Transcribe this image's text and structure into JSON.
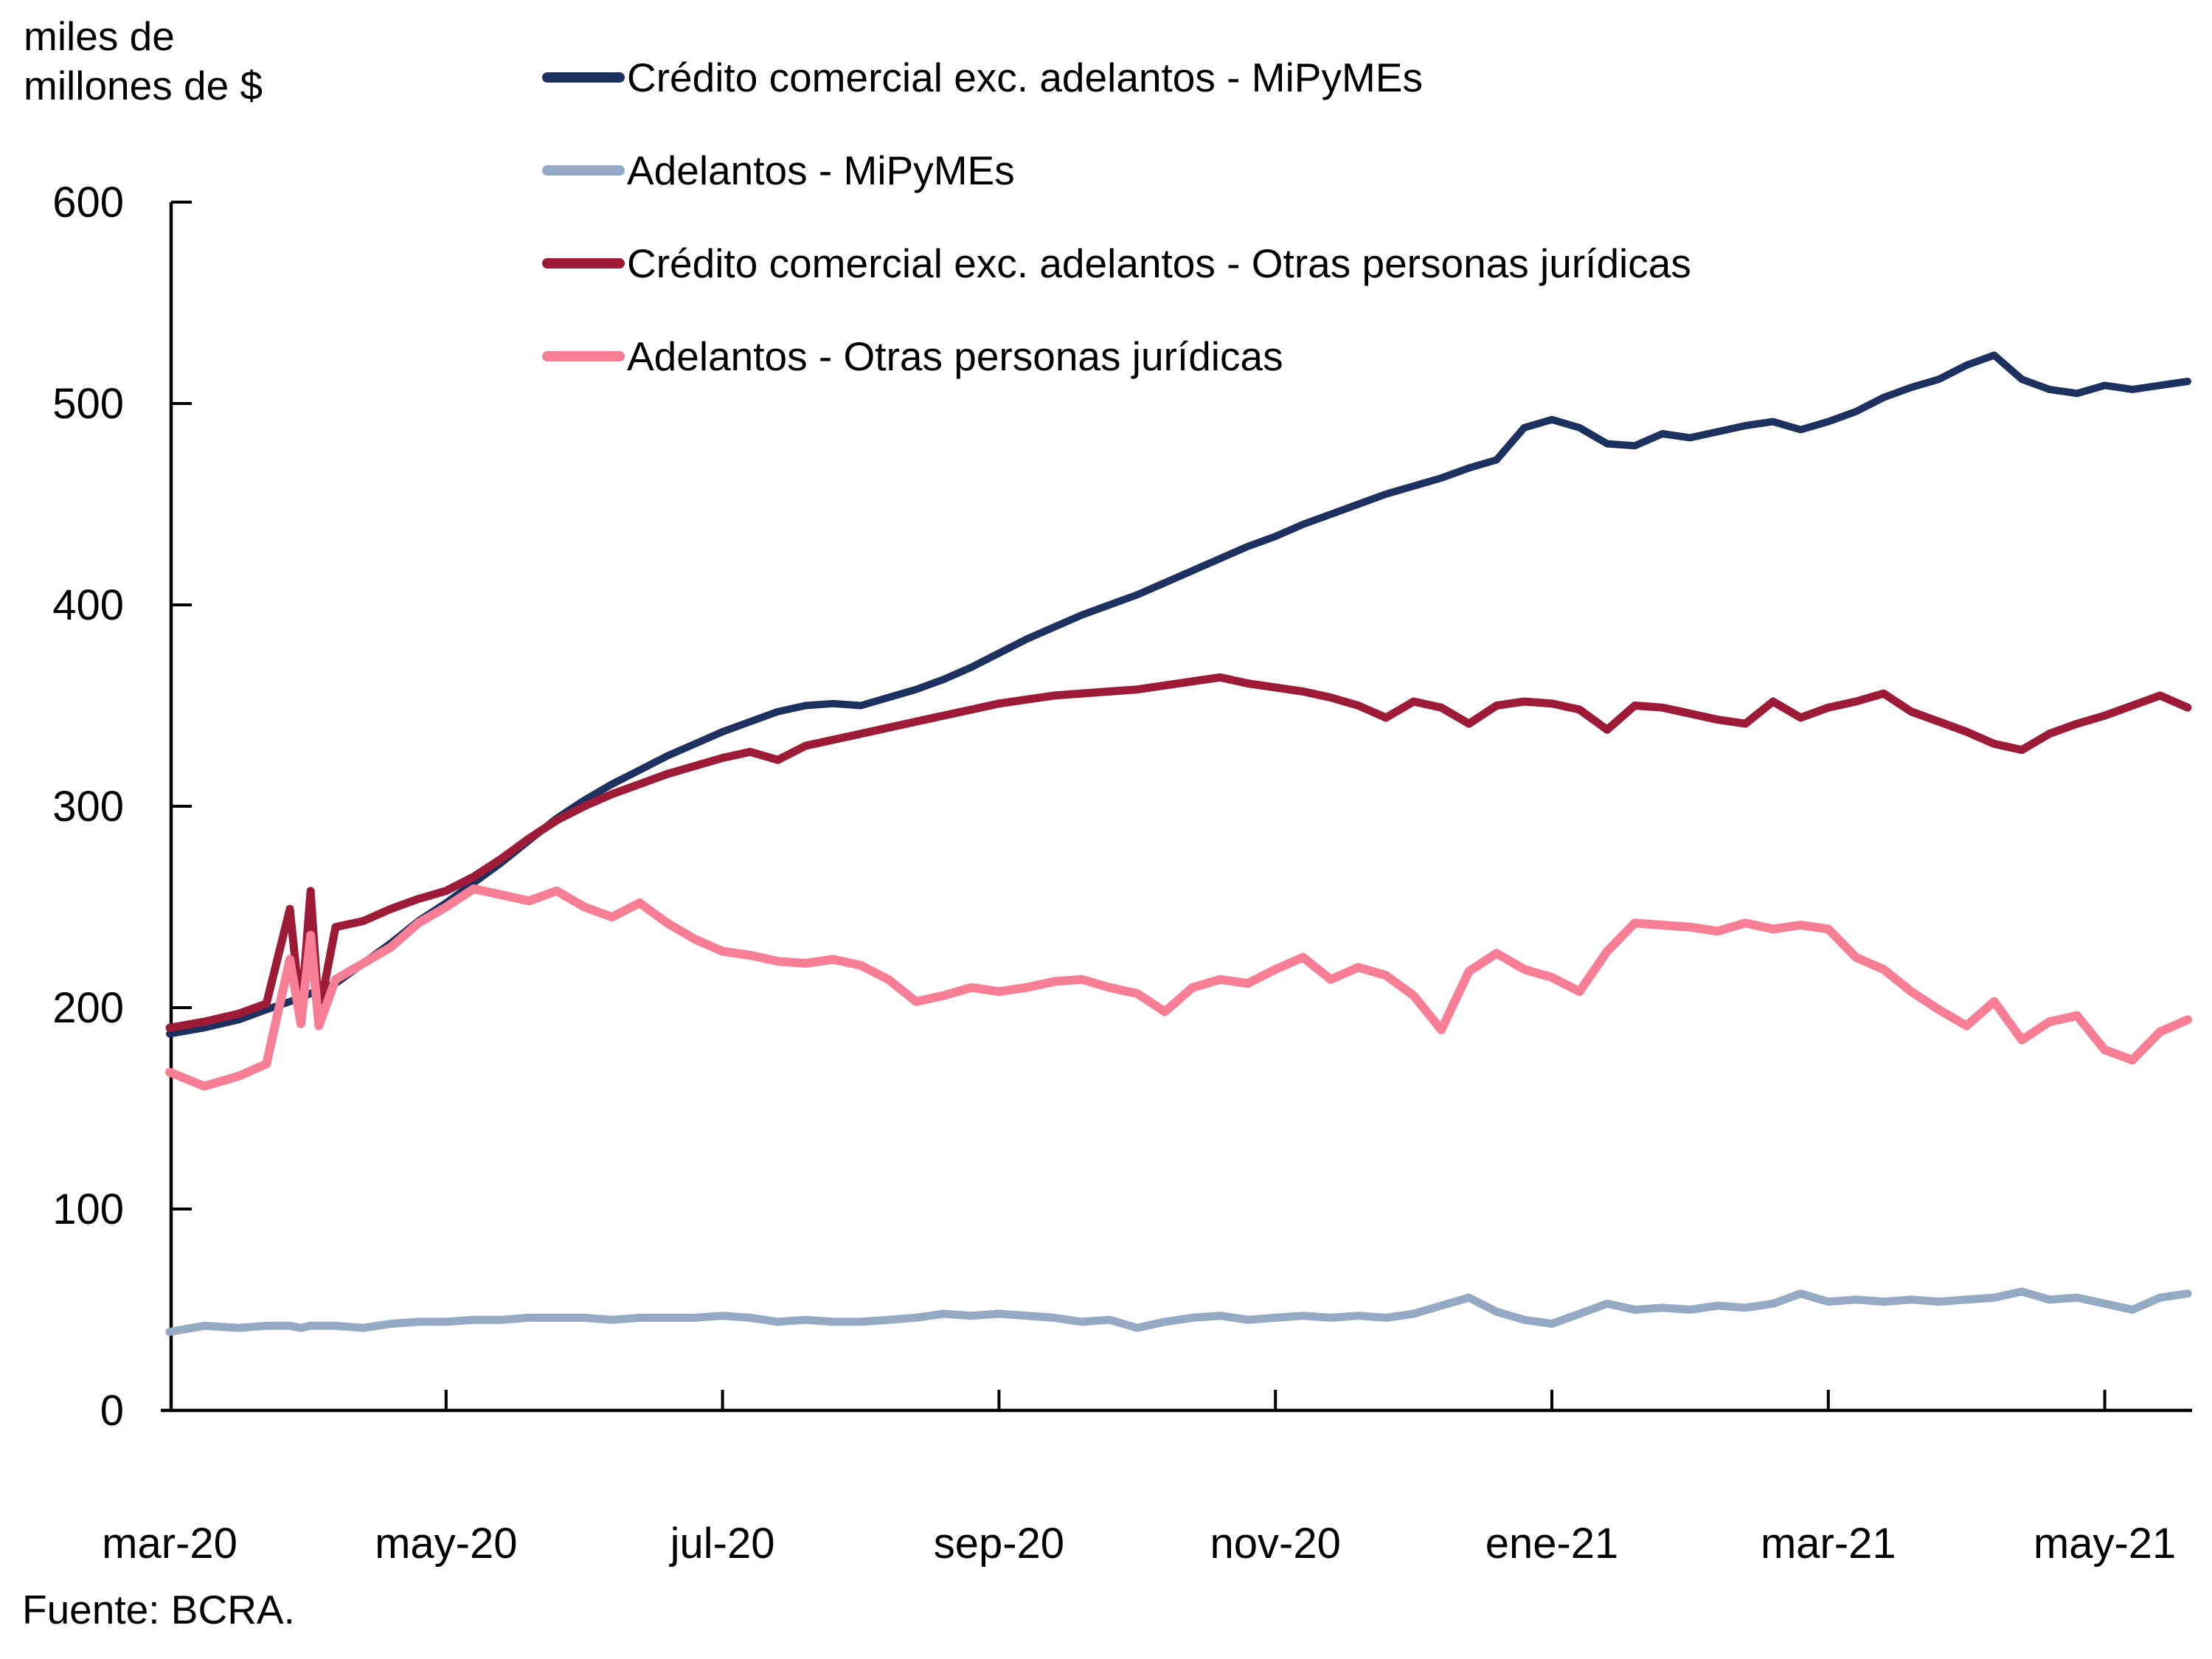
{
  "figure": {
    "ylabel_line1": "miles de",
    "ylabel_line2": "millones de $",
    "source": "Fuente: BCRA."
  },
  "chart_data": {
    "type": "line",
    "title": "",
    "xlabel": "",
    "ylabel": "miles de millones de $",
    "ylim": [
      0,
      600
    ],
    "yticks": [
      0,
      100,
      200,
      300,
      400,
      500,
      600
    ],
    "xtick_labels": [
      "mar-20",
      "may-20",
      "jul-20",
      "sep-20",
      "nov-20",
      "ene-21",
      "mar-21",
      "may-21"
    ],
    "xtick_months": [
      0,
      2,
      4,
      6,
      8,
      10,
      12,
      14
    ],
    "grid": false,
    "legend_position": "top-left",
    "x_months": [
      0,
      0.25,
      0.5,
      0.7,
      0.87,
      0.95,
      1.02,
      1.08,
      1.2,
      1.4,
      1.6,
      1.8,
      2.0,
      2.2,
      2.4,
      2.6,
      2.8,
      3.0,
      3.2,
      3.4,
      3.6,
      3.8,
      4.0,
      4.2,
      4.4,
      4.6,
      4.8,
      5.0,
      5.2,
      5.4,
      5.6,
      5.8,
      6.0,
      6.2,
      6.4,
      6.6,
      6.8,
      7.0,
      7.2,
      7.4,
      7.6,
      7.8,
      8.0,
      8.2,
      8.4,
      8.6,
      8.8,
      9.0,
      9.2,
      9.4,
      9.6,
      9.8,
      10.0,
      10.2,
      10.4,
      10.6,
      10.8,
      11.0,
      11.2,
      11.4,
      11.6,
      11.8,
      12.0,
      12.2,
      12.4,
      12.6,
      12.8,
      13.0,
      13.2,
      13.4,
      13.6,
      13.8,
      14.0,
      14.2,
      14.4,
      14.6
    ],
    "series": [
      {
        "name": "Crédito comercial exc. adelantos - MiPyMEs",
        "color": "#1d3160",
        "stroke_width": 10,
        "values": [
          187,
          190,
          194,
          199,
          203,
          205,
          207,
          209,
          212,
          222,
          232,
          243,
          252,
          262,
          272,
          283,
          294,
          303,
          311,
          318,
          325,
          331,
          337,
          342,
          347,
          350,
          351,
          350,
          354,
          358,
          363,
          369,
          376,
          383,
          389,
          395,
          400,
          405,
          411,
          417,
          423,
          429,
          434,
          440,
          445,
          450,
          455,
          459,
          463,
          468,
          472,
          488,
          492,
          488,
          480,
          479,
          485,
          483,
          486,
          489,
          491,
          487,
          491,
          496,
          503,
          508,
          512,
          519,
          524,
          512,
          507,
          505,
          509,
          507,
          509,
          511
        ]
      },
      {
        "name": "Adelantos - MiPyMEs",
        "color": "#94a9c4",
        "stroke_width": 11,
        "values": [
          39,
          42,
          41,
          42,
          42,
          41,
          42,
          42,
          42,
          41,
          43,
          44,
          44,
          45,
          45,
          46,
          46,
          46,
          45,
          46,
          46,
          46,
          47,
          46,
          44,
          45,
          44,
          44,
          45,
          46,
          48,
          47,
          48,
          47,
          46,
          44,
          45,
          41,
          44,
          46,
          47,
          45,
          46,
          47,
          46,
          47,
          46,
          48,
          52,
          56,
          49,
          45,
          43,
          48,
          53,
          50,
          51,
          50,
          52,
          51,
          53,
          58,
          54,
          55,
          54,
          55,
          54,
          55,
          56,
          59,
          55,
          56,
          53,
          50,
          56,
          58
        ]
      },
      {
        "name": "Crédito comercial exc. adelantos - Otras personas jurídicas",
        "color": "#9e1b38",
        "stroke_width": 11,
        "values": [
          190,
          193,
          197,
          202,
          249,
          196,
          258,
          197,
          240,
          243,
          249,
          254,
          258,
          265,
          274,
          284,
          293,
          300,
          306,
          311,
          316,
          320,
          324,
          327,
          323,
          330,
          333,
          336,
          339,
          342,
          345,
          348,
          351,
          353,
          355,
          356,
          357,
          358,
          360,
          362,
          364,
          361,
          359,
          357,
          354,
          350,
          344,
          352,
          349,
          341,
          350,
          352,
          351,
          348,
          338,
          350,
          349,
          346,
          343,
          341,
          352,
          344,
          349,
          352,
          356,
          347,
          342,
          337,
          331,
          328,
          336,
          341,
          345,
          350,
          355,
          349
        ]
      },
      {
        "name": "Adelantos - Otras personas jurídicas",
        "color": "#f87e95",
        "stroke_width": 12,
        "values": [
          168,
          161,
          166,
          172,
          224,
          192,
          236,
          191,
          214,
          222,
          230,
          242,
          250,
          259,
          256,
          253,
          258,
          250,
          245,
          252,
          242,
          234,
          228,
          226,
          223,
          222,
          224,
          221,
          214,
          203,
          206,
          210,
          208,
          210,
          213,
          214,
          210,
          207,
          198,
          210,
          214,
          212,
          219,
          225,
          214,
          220,
          216,
          206,
          189,
          218,
          227,
          219,
          215,
          208,
          228,
          242,
          241,
          240,
          238,
          242,
          239,
          241,
          239,
          225,
          219,
          208,
          199,
          191,
          203,
          184,
          193,
          196,
          179,
          174,
          188,
          194
        ]
      }
    ]
  }
}
